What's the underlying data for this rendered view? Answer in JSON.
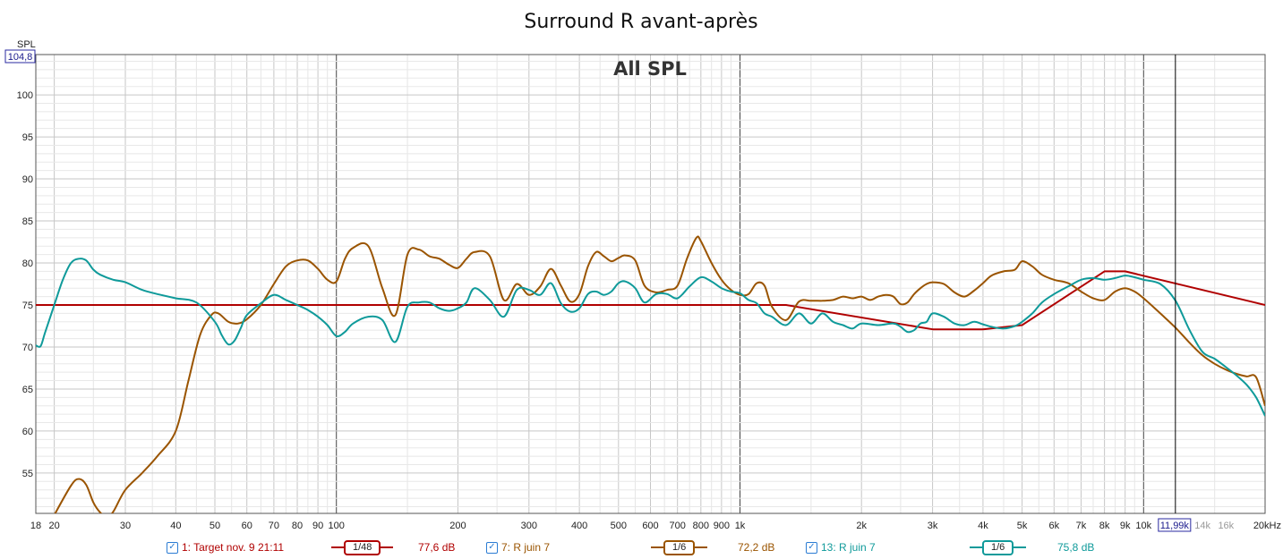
{
  "chart_data": {
    "type": "line",
    "title": "Surround R avant-après",
    "overlay_label": "All SPL",
    "ylabel": "SPL",
    "y_top_readout": "104,8",
    "xunit": "Hz",
    "cursor_readout": "11,99k",
    "cursor_x": 11990,
    "x_scale": "log",
    "xlim": [
      18,
      20000
    ],
    "ylim": [
      50.2,
      104.8
    ],
    "grid": true,
    "y_ticks": [
      55,
      60,
      65,
      70,
      75,
      80,
      85,
      90,
      95,
      100
    ],
    "x_ticks": [
      {
        "v": 18,
        "label": "18"
      },
      {
        "v": 20,
        "label": "20"
      },
      {
        "v": 30,
        "label": "30"
      },
      {
        "v": 40,
        "label": "40"
      },
      {
        "v": 50,
        "label": "50"
      },
      {
        "v": 60,
        "label": "60"
      },
      {
        "v": 70,
        "label": "70"
      },
      {
        "v": 80,
        "label": "80"
      },
      {
        "v": 90,
        "label": "90"
      },
      {
        "v": 100,
        "label": "100"
      },
      {
        "v": 200,
        "label": "200"
      },
      {
        "v": 300,
        "label": "300"
      },
      {
        "v": 400,
        "label": "400"
      },
      {
        "v": 500,
        "label": "500"
      },
      {
        "v": 600,
        "label": "600"
      },
      {
        "v": 700,
        "label": "700"
      },
      {
        "v": 800,
        "label": "800"
      },
      {
        "v": 900,
        "label": "900"
      },
      {
        "v": 1000,
        "label": "1k"
      },
      {
        "v": 2000,
        "label": "2k"
      },
      {
        "v": 3000,
        "label": "3k"
      },
      {
        "v": 4000,
        "label": "4k"
      },
      {
        "v": 5000,
        "label": "5k"
      },
      {
        "v": 6000,
        "label": "6k"
      },
      {
        "v": 7000,
        "label": "7k"
      },
      {
        "v": 8000,
        "label": "8k"
      },
      {
        "v": 9000,
        "label": "9k"
      },
      {
        "v": 10000,
        "label": "10k"
      },
      {
        "v": 14000,
        "label": "14k",
        "minor": true
      },
      {
        "v": 16000,
        "label": "16k",
        "minor": true
      },
      {
        "v": 20000,
        "label": "20kHz"
      }
    ],
    "series": [
      {
        "name": "1: Target nov. 9 21:11",
        "smoothing": "1/48",
        "level": "77,6 dB",
        "color": "#b00000",
        "x": [
          18,
          1300,
          3000,
          4000,
          5000,
          8000,
          9000,
          20000
        ],
        "y": [
          75,
          75,
          72.1,
          72.1,
          72.6,
          79,
          79,
          75
        ]
      },
      {
        "name": "7: R juin 7",
        "smoothing": "1/6",
        "level": "72,2 dB",
        "color": "#9a5400",
        "x": [
          20,
          22,
          23,
          24,
          25,
          26,
          27,
          28,
          30,
          33,
          36,
          40,
          43,
          46,
          49,
          51,
          54,
          57,
          60,
          65,
          70,
          75,
          80,
          85,
          90,
          95,
          100,
          105,
          110,
          120,
          130,
          140,
          150,
          160,
          170,
          180,
          190,
          200,
          210,
          220,
          240,
          260,
          280,
          300,
          320,
          340,
          360,
          380,
          400,
          420,
          440,
          460,
          480,
          500,
          520,
          550,
          580,
          620,
          660,
          700,
          740,
          780,
          800,
          850,
          900,
          950,
          1000,
          1050,
          1100,
          1150,
          1200,
          1300,
          1400,
          1500,
          1600,
          1700,
          1800,
          1900,
          2000,
          2100,
          2200,
          2300,
          2400,
          2500,
          2600,
          2700,
          2800,
          2900,
          3000,
          3200,
          3400,
          3600,
          3800,
          4000,
          4200,
          4500,
          4800,
          5000,
          5300,
          5600,
          6000,
          6500,
          7000,
          7500,
          8000,
          8500,
          9000,
          9500,
          10000,
          11000,
          12000,
          13000,
          14000,
          15000,
          16000,
          17000,
          18000,
          19000,
          20000
        ],
        "y": [
          50,
          53.5,
          54.3,
          53.6,
          51.5,
          50.3,
          49.8,
          50.4,
          53,
          55,
          57,
          60,
          66,
          71.5,
          73.8,
          74,
          73,
          72.8,
          73.3,
          75,
          77.5,
          79.6,
          80.3,
          80.3,
          79.3,
          78,
          77.8,
          80.5,
          81.8,
          82,
          77,
          73.8,
          81,
          81.6,
          80.8,
          80.5,
          79.8,
          79.4,
          80.5,
          81.3,
          80.8,
          75.6,
          77.5,
          76.2,
          77.2,
          79.3,
          77.3,
          75.4,
          76.3,
          79.6,
          81.3,
          80.8,
          80.2,
          80.6,
          80.9,
          80.3,
          77.3,
          76.5,
          76.8,
          77.3,
          80.6,
          83,
          82.6,
          80,
          78,
          76.8,
          76.2,
          76.3,
          77.6,
          77.3,
          74.8,
          73.2,
          75.4,
          75.5,
          75.5,
          75.6,
          76,
          75.8,
          76,
          75.6,
          76,
          76.2,
          76,
          75.1,
          75.3,
          76.3,
          77,
          77.5,
          77.7,
          77.5,
          76.5,
          76,
          76.7,
          77.6,
          78.5,
          79,
          79.2,
          80.2,
          79.6,
          78.6,
          78,
          77.6,
          76.6,
          75.8,
          75.6,
          76.6,
          77,
          76.6,
          75.8,
          74,
          72.3,
          70.5,
          69,
          68,
          67.3,
          66.8,
          66.5,
          66.4,
          63
        ]
      },
      {
        "name": "13: R juin 7",
        "smoothing": "1/6",
        "level": "75,8 dB",
        "color": "#0f9a9a",
        "x": [
          18,
          18.5,
          19,
          20,
          21,
          22,
          23,
          24,
          25,
          26,
          28,
          30,
          33,
          36,
          40,
          45,
          50,
          52,
          54,
          56,
          58,
          60,
          65,
          70,
          75,
          80,
          85,
          90,
          95,
          100,
          105,
          110,
          120,
          130,
          140,
          150,
          160,
          170,
          180,
          190,
          200,
          210,
          220,
          240,
          260,
          280,
          300,
          320,
          340,
          360,
          380,
          400,
          420,
          440,
          460,
          480,
          500,
          520,
          550,
          580,
          620,
          660,
          700,
          750,
          800,
          850,
          900,
          950,
          1000,
          1050,
          1100,
          1150,
          1200,
          1300,
          1400,
          1500,
          1600,
          1700,
          1800,
          1900,
          2000,
          2200,
          2400,
          2500,
          2600,
          2700,
          2800,
          2900,
          3000,
          3200,
          3400,
          3600,
          3800,
          4000,
          4200,
          4500,
          4800,
          5000,
          5300,
          5600,
          6000,
          6500,
          7000,
          7500,
          8000,
          8500,
          9000,
          9500,
          10000,
          11000,
          12000,
          13000,
          14000,
          15000,
          16000,
          17000,
          18000,
          19000,
          20000
        ],
        "y": [
          70.2,
          70.1,
          71.8,
          75,
          78,
          80,
          80.5,
          80.3,
          79.2,
          78.6,
          78,
          77.7,
          76.8,
          76.3,
          75.8,
          75.3,
          73,
          71.4,
          70.3,
          70.8,
          72.3,
          73.8,
          75.2,
          76.2,
          75.6,
          75,
          74.4,
          73.6,
          72.6,
          71.3,
          71.8,
          72.8,
          73.6,
          73.2,
          70.6,
          74.8,
          75.3,
          75.3,
          74.6,
          74.3,
          74.6,
          75.3,
          77,
          75.6,
          73.6,
          76.8,
          76.8,
          76.2,
          77.6,
          75.2,
          74.2,
          74.6,
          76.3,
          76.6,
          76.2,
          76.6,
          77.6,
          77.8,
          77,
          75.3,
          76.3,
          76.3,
          75.8,
          77.2,
          78.3,
          77.8,
          77,
          76.6,
          76.4,
          75.6,
          75.2,
          74,
          73.6,
          72.6,
          74,
          72.8,
          74,
          73,
          72.6,
          72.2,
          72.8,
          72.6,
          72.8,
          72.4,
          71.8,
          72,
          72.8,
          73,
          74,
          73.6,
          72.8,
          72.6,
          73,
          72.7,
          72.4,
          72.2,
          72.5,
          73,
          74,
          75.3,
          76.3,
          77.2,
          78,
          78.2,
          78,
          78.2,
          78.5,
          78.3,
          78,
          77.5,
          75.5,
          72,
          69.4,
          68.6,
          67.6,
          66.6,
          65.5,
          64,
          61.8
        ]
      }
    ]
  }
}
